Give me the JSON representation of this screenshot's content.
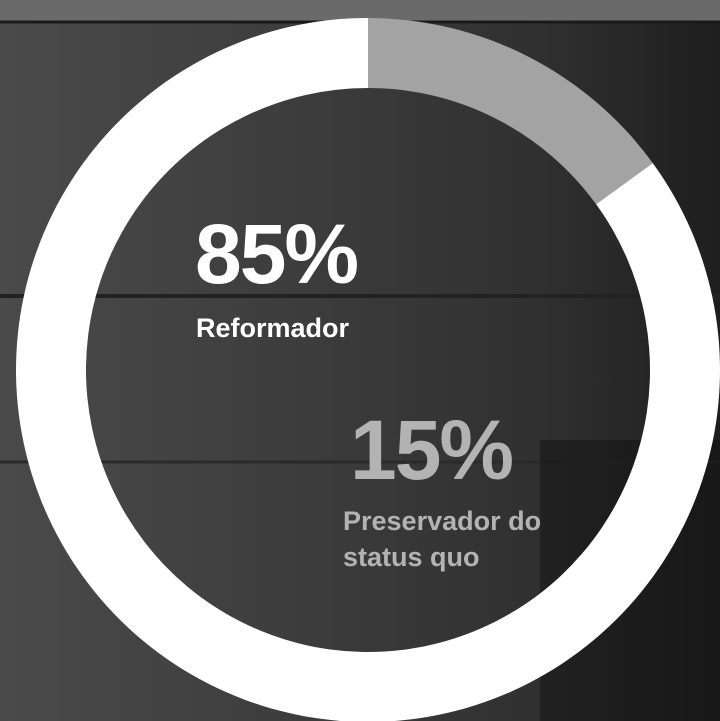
{
  "chart_data": {
    "type": "pie",
    "categories": [
      "Reformador",
      "Preservador do status quo"
    ],
    "values": [
      85,
      15
    ],
    "value_labels": [
      "85%",
      "15%"
    ],
    "colors": [
      "#ffffff",
      "#a3a3a3"
    ],
    "label_colors": [
      "#ffffff",
      "#b3b3b3"
    ]
  }
}
